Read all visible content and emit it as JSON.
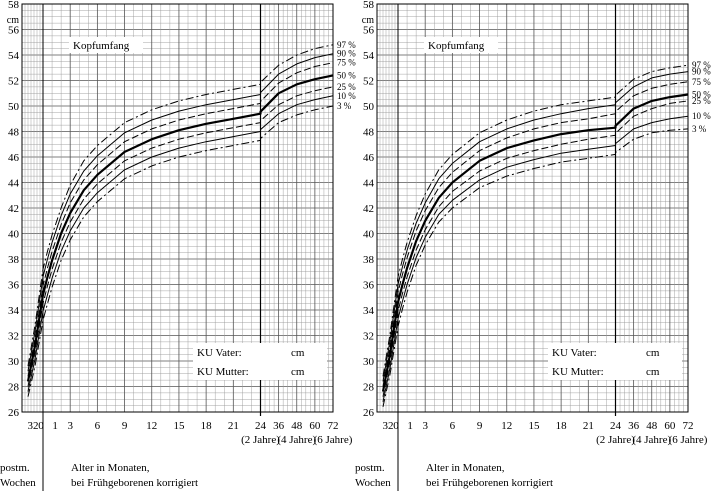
{
  "chart_data": [
    {
      "type": "line",
      "title": "Kopfumfang",
      "ylabel": "cm",
      "xlabel": "Alter in Monaten, bei Frühgeborenen korrigiert",
      "pre_label_line1": "postm.",
      "pre_label_line2": "Wochen",
      "ylim": [
        26,
        58
      ],
      "y_ticks": [
        26,
        28,
        30,
        32,
        34,
        36,
        38,
        40,
        42,
        44,
        46,
        48,
        50,
        52,
        54,
        56,
        58
      ],
      "x_ticks": [
        "0",
        "1",
        "3",
        "6",
        "9",
        "12",
        "15",
        "18",
        "21",
        "24",
        "36",
        "48",
        "60",
        "72"
      ],
      "week_tick": "32",
      "year_labels": [
        "(2 Jahre)",
        "(4 Jahre)",
        "(6 Jahre)"
      ],
      "parent_fields": [
        {
          "label": "KU Vater:",
          "unit": "cm"
        },
        {
          "label": "KU Mutter:",
          "unit": "cm"
        }
      ],
      "x_months": [
        0,
        0.5,
        1,
        2,
        3,
        4.5,
        6,
        9,
        12,
        15,
        18,
        21,
        24,
        36,
        48,
        60,
        72
      ],
      "series": [
        {
          "name": "97 %",
          "style": "dashdot",
          "values": [
            37.2,
            38.6,
            39.9,
            42.0,
            43.8,
            45.7,
            46.9,
            48.7,
            49.7,
            50.4,
            50.9,
            51.3,
            51.7,
            53.2,
            54.0,
            54.5,
            54.8
          ]
        },
        {
          "name": "90 %",
          "style": "solid",
          "values": [
            36.6,
            38.0,
            39.3,
            41.4,
            43.1,
            44.9,
            46.1,
            47.9,
            48.9,
            49.6,
            50.1,
            50.5,
            50.9,
            52.5,
            53.3,
            53.8,
            54.1
          ]
        },
        {
          "name": "75 %",
          "style": "dashed",
          "values": [
            35.9,
            37.3,
            38.6,
            40.7,
            42.4,
            44.2,
            45.4,
            47.2,
            48.2,
            48.9,
            49.4,
            49.8,
            50.2,
            51.8,
            52.6,
            53.1,
            53.4
          ]
        },
        {
          "name": "50 %",
          "style": "bold",
          "values": [
            35.2,
            36.6,
            37.9,
            40.0,
            41.6,
            43.4,
            44.6,
            46.4,
            47.4,
            48.1,
            48.6,
            49.0,
            49.4,
            51.0,
            51.7,
            52.1,
            52.4
          ]
        },
        {
          "name": "25 %",
          "style": "dashed",
          "values": [
            34.5,
            35.9,
            37.2,
            39.3,
            40.9,
            42.7,
            43.9,
            45.7,
            46.7,
            47.4,
            47.9,
            48.3,
            48.7,
            50.1,
            50.8,
            51.2,
            51.5
          ]
        },
        {
          "name": "10 %",
          "style": "solid",
          "values": [
            33.9,
            35.2,
            36.5,
            38.6,
            40.2,
            42.0,
            43.2,
            45.0,
            46.0,
            46.7,
            47.2,
            47.6,
            48.0,
            49.4,
            50.1,
            50.5,
            50.8
          ]
        },
        {
          "name": "3 %",
          "style": "dashdot",
          "values": [
            33.2,
            34.5,
            35.8,
            37.9,
            39.5,
            41.3,
            42.5,
            44.3,
            45.3,
            46.0,
            46.5,
            46.9,
            47.3,
            48.7,
            49.3,
            49.7,
            50.0
          ]
        }
      ],
      "preterm_start": {
        "week": 32,
        "values": [
          29.6,
          29.2,
          28.8,
          28.4,
          28.0,
          27.6,
          27.2
        ]
      }
    },
    {
      "type": "line",
      "title": "Kopfumfang",
      "ylabel": "cm",
      "xlabel": "Alter in Monaten, bei Frühgeborenen korrigiert",
      "pre_label_line1": "postm.",
      "pre_label_line2": "Wochen",
      "ylim": [
        26,
        58
      ],
      "y_ticks": [
        26,
        28,
        30,
        32,
        34,
        36,
        38,
        40,
        42,
        44,
        46,
        48,
        50,
        52,
        54,
        56,
        58
      ],
      "x_ticks": [
        "0",
        "1",
        "3",
        "6",
        "9",
        "12",
        "15",
        "18",
        "21",
        "24",
        "36",
        "48",
        "60",
        "72"
      ],
      "week_tick": "32",
      "year_labels": [
        "(2 Jahre)",
        "(4 Jahre)",
        "(6 Jahre)"
      ],
      "parent_fields": [
        {
          "label": "KU Vater:",
          "unit": "cm"
        },
        {
          "label": "KU Mutter:",
          "unit": "cm"
        }
      ],
      "x_months": [
        0,
        0.5,
        1,
        2,
        3,
        4.5,
        6,
        9,
        12,
        15,
        18,
        21,
        24,
        36,
        48,
        60,
        72
      ],
      "series": [
        {
          "name": "97 %",
          "style": "dashdot",
          "values": [
            36.6,
            38.0,
            39.3,
            41.4,
            43.1,
            45.0,
            46.2,
            47.9,
            48.9,
            49.6,
            50.1,
            50.4,
            50.7,
            52.1,
            52.7,
            53.0,
            53.2
          ]
        },
        {
          "name": "90 %",
          "style": "solid",
          "values": [
            36.0,
            37.4,
            38.7,
            40.8,
            42.4,
            44.3,
            45.5,
            47.2,
            48.2,
            48.9,
            49.4,
            49.8,
            50.1,
            51.5,
            52.2,
            52.5,
            52.7
          ]
        },
        {
          "name": "75 %",
          "style": "dashed",
          "values": [
            35.4,
            36.8,
            38.1,
            40.2,
            41.8,
            43.6,
            44.8,
            46.5,
            47.5,
            48.2,
            48.7,
            49.0,
            49.4,
            50.8,
            51.4,
            51.7,
            51.9
          ]
        },
        {
          "name": "50 %",
          "style": "bold",
          "values": [
            34.6,
            36.0,
            37.3,
            39.4,
            41.0,
            42.8,
            44.0,
            45.7,
            46.7,
            47.3,
            47.8,
            48.1,
            48.3,
            49.8,
            50.4,
            50.7,
            50.9
          ]
        },
        {
          "name": "25 %",
          "style": "dashed",
          "values": [
            33.9,
            35.3,
            36.6,
            38.7,
            40.3,
            42.1,
            43.3,
            44.9,
            45.9,
            46.5,
            47.0,
            47.4,
            47.7,
            49.2,
            49.8,
            50.2,
            50.4
          ]
        },
        {
          "name": "10 %",
          "style": "solid",
          "values": [
            33.3,
            34.7,
            36.0,
            38.1,
            39.7,
            41.5,
            42.6,
            44.2,
            45.2,
            45.8,
            46.3,
            46.6,
            46.9,
            48.2,
            48.7,
            49.0,
            49.2
          ]
        },
        {
          "name": "3 %",
          "style": "dashdot",
          "values": [
            32.7,
            34.1,
            35.4,
            37.5,
            39.1,
            40.9,
            42.0,
            43.6,
            44.5,
            45.1,
            45.6,
            45.9,
            46.2,
            47.4,
            47.9,
            48.1,
            48.2
          ]
        }
      ],
      "preterm_start": {
        "week": 32,
        "values": [
          28.8,
          28.4,
          28.0,
          27.6,
          27.2,
          26.8,
          26.4
        ]
      }
    }
  ]
}
